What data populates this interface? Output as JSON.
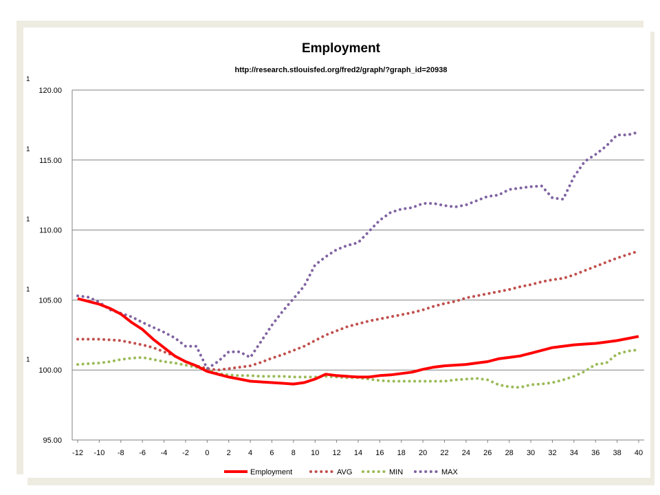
{
  "colors": {
    "employment": "#ff0000",
    "avg": "#c0504d",
    "min": "#9bbb59",
    "max": "#8064a2",
    "grid": "#808080",
    "frame": "#eeece1"
  },
  "chart_data": {
    "type": "line",
    "title": "Employment",
    "subtitle": "http://research.stlouisfed.org/fred2/graph/?graph_id=20938",
    "xlabel": "",
    "ylabel": "",
    "xlim": [
      -12,
      40
    ],
    "ylim": [
      95,
      120
    ],
    "grid": true,
    "legend_position": "bottom",
    "x_ticks": [
      "-12",
      "-10",
      "-8",
      "-6",
      "-4",
      "-2",
      "0",
      "2",
      "4",
      "6",
      "8",
      "10",
      "12",
      "14",
      "16",
      "18",
      "20",
      "22",
      "24",
      "26",
      "28",
      "30",
      "32",
      "34",
      "36",
      "38",
      "40"
    ],
    "y_ticks": [
      "95.00",
      "100.00",
      "105.00",
      "110.00",
      "115.00",
      "120.00"
    ],
    "x": [
      -12,
      -11,
      -10,
      -9,
      -8,
      -7,
      -6,
      -5,
      -4,
      -3,
      -2,
      -1,
      0,
      1,
      2,
      3,
      4,
      5,
      6,
      7,
      8,
      9,
      10,
      11,
      12,
      13,
      14,
      15,
      16,
      17,
      18,
      19,
      20,
      21,
      22,
      23,
      24,
      25,
      26,
      27,
      28,
      29,
      30,
      31,
      32,
      33,
      34,
      35,
      36,
      37,
      38,
      39,
      40
    ],
    "series": [
      {
        "name": "Employment",
        "style": "solid",
        "values": [
          105.1,
          104.9,
          104.7,
          104.4,
          104.0,
          103.4,
          102.9,
          102.2,
          101.6,
          101.0,
          100.6,
          100.3,
          99.9,
          99.7,
          99.5,
          99.35,
          99.2,
          99.15,
          99.1,
          99.05,
          99.0,
          99.1,
          99.35,
          99.7,
          99.6,
          99.55,
          99.5,
          99.5,
          99.6,
          99.65,
          99.75,
          99.85,
          100.05,
          100.2,
          100.3,
          100.35,
          100.4,
          100.5,
          100.6,
          100.8,
          100.9,
          101.0,
          101.2,
          101.4,
          101.6,
          101.7,
          101.8,
          101.85,
          101.9,
          102.0,
          102.1,
          102.25,
          102.4
        ]
      },
      {
        "name": "AVG",
        "style": "dotted",
        "values": [
          102.2,
          102.2,
          102.2,
          102.15,
          102.1,
          101.95,
          101.8,
          101.6,
          101.3,
          101.0,
          100.6,
          100.3,
          100.1,
          100.0,
          100.1,
          100.2,
          100.3,
          100.55,
          100.85,
          101.1,
          101.4,
          101.7,
          102.1,
          102.5,
          102.8,
          103.1,
          103.3,
          103.5,
          103.65,
          103.8,
          103.95,
          104.1,
          104.3,
          104.55,
          104.75,
          104.9,
          105.15,
          105.3,
          105.45,
          105.6,
          105.75,
          105.95,
          106.1,
          106.3,
          106.45,
          106.55,
          106.8,
          107.1,
          107.4,
          107.7,
          108.0,
          108.25,
          108.5
        ]
      },
      {
        "name": "MIN",
        "style": "dotted",
        "values": [
          100.4,
          100.45,
          100.5,
          100.6,
          100.75,
          100.85,
          100.9,
          100.75,
          100.6,
          100.5,
          100.35,
          100.2,
          100.0,
          99.75,
          99.65,
          99.6,
          99.6,
          99.55,
          99.55,
          99.55,
          99.5,
          99.5,
          99.5,
          99.55,
          99.5,
          99.45,
          99.45,
          99.35,
          99.25,
          99.2,
          99.2,
          99.2,
          99.2,
          99.2,
          99.2,
          99.3,
          99.35,
          99.4,
          99.3,
          98.95,
          98.8,
          98.75,
          98.95,
          99.0,
          99.1,
          99.3,
          99.55,
          99.9,
          100.4,
          100.5,
          101.15,
          101.35,
          101.45
        ]
      },
      {
        "name": "MAX",
        "style": "dotted",
        "values": [
          105.3,
          105.2,
          104.85,
          104.3,
          104.05,
          103.8,
          103.4,
          103.05,
          102.7,
          102.3,
          101.7,
          101.7,
          100.1,
          100.6,
          101.3,
          101.3,
          100.9,
          102.05,
          103.2,
          104.2,
          105.1,
          106.0,
          107.5,
          108.1,
          108.6,
          108.9,
          109.1,
          109.9,
          110.7,
          111.25,
          111.5,
          111.6,
          111.9,
          111.9,
          111.75,
          111.65,
          111.8,
          112.1,
          112.4,
          112.5,
          112.9,
          113.0,
          113.1,
          113.15,
          112.3,
          112.2,
          113.8,
          114.9,
          115.4,
          116.0,
          116.8,
          116.8,
          117.0
        ]
      }
    ]
  }
}
